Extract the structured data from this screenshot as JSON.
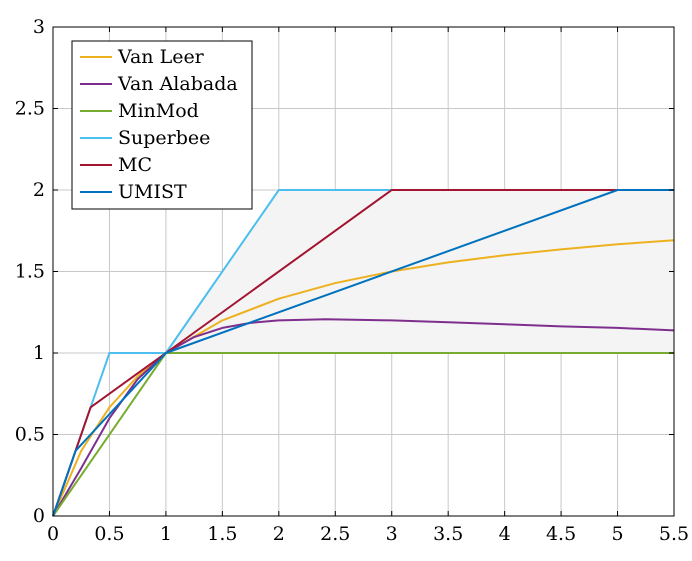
{
  "chart_data": {
    "type": "line",
    "title": "",
    "xlabel": "",
    "ylabel": "",
    "xlim": [
      0,
      5.5
    ],
    "ylim": [
      0,
      3
    ],
    "xticks": [
      "0",
      "0.5",
      "1",
      "1.5",
      "2",
      "2.5",
      "3",
      "3.5",
      "4",
      "4.5",
      "5",
      "5.5"
    ],
    "yticks": [
      "0",
      "0.5",
      "1",
      "1.5",
      "2",
      "2.5",
      "3"
    ],
    "grid": true,
    "legend_position": "top-left",
    "shaded_region": {
      "description_points": [
        [
          1,
          1
        ],
        [
          2,
          2
        ],
        [
          5.5,
          2
        ],
        [
          5.5,
          1
        ]
      ],
      "color": "#f4f4f4"
    },
    "series": [
      {
        "name": "Van Leer",
        "color": "#EDB120",
        "points": [
          [
            0,
            0
          ],
          [
            0.25,
            0.4
          ],
          [
            0.5,
            0.667
          ],
          [
            0.75,
            0.857
          ],
          [
            1,
            1
          ],
          [
            1.5,
            1.2
          ],
          [
            2,
            1.333
          ],
          [
            2.5,
            1.429
          ],
          [
            3,
            1.5
          ],
          [
            3.5,
            1.556
          ],
          [
            4,
            1.6
          ],
          [
            4.5,
            1.636
          ],
          [
            5,
            1.667
          ],
          [
            5.5,
            1.692
          ]
        ]
      },
      {
        "name": "Van Alabada",
        "color": "#7E2F8E",
        "points": [
          [
            0,
            0
          ],
          [
            0.25,
            0.294
          ],
          [
            0.5,
            0.6
          ],
          [
            0.75,
            0.84
          ],
          [
            1,
            1
          ],
          [
            1.25,
            1.098
          ],
          [
            1.5,
            1.154
          ],
          [
            1.75,
            1.185
          ],
          [
            2,
            1.2
          ],
          [
            2.414,
            1.207
          ],
          [
            3,
            1.2
          ],
          [
            3.5,
            1.189
          ],
          [
            4,
            1.176
          ],
          [
            4.5,
            1.163
          ],
          [
            5,
            1.154
          ],
          [
            5.5,
            1.139
          ]
        ]
      },
      {
        "name": "MinMod",
        "color": "#77AC30",
        "points": [
          [
            0,
            0
          ],
          [
            1,
            1
          ],
          [
            5.5,
            1
          ]
        ]
      },
      {
        "name": "Superbee",
        "color": "#4DBEEE",
        "points": [
          [
            0,
            0
          ],
          [
            0.5,
            1
          ],
          [
            1,
            1
          ],
          [
            2,
            2
          ],
          [
            5.5,
            2
          ]
        ]
      },
      {
        "name": "MC",
        "color": "#A2142F",
        "points": [
          [
            0,
            0
          ],
          [
            0.333,
            0.667
          ],
          [
            1,
            1
          ],
          [
            3,
            2
          ],
          [
            5.5,
            2
          ]
        ]
      },
      {
        "name": "UMIST",
        "color": "#0072BD",
        "points": [
          [
            0,
            0
          ],
          [
            0.2,
            0.4
          ],
          [
            1,
            1
          ],
          [
            5,
            2
          ],
          [
            5.5,
            2
          ]
        ]
      }
    ]
  }
}
